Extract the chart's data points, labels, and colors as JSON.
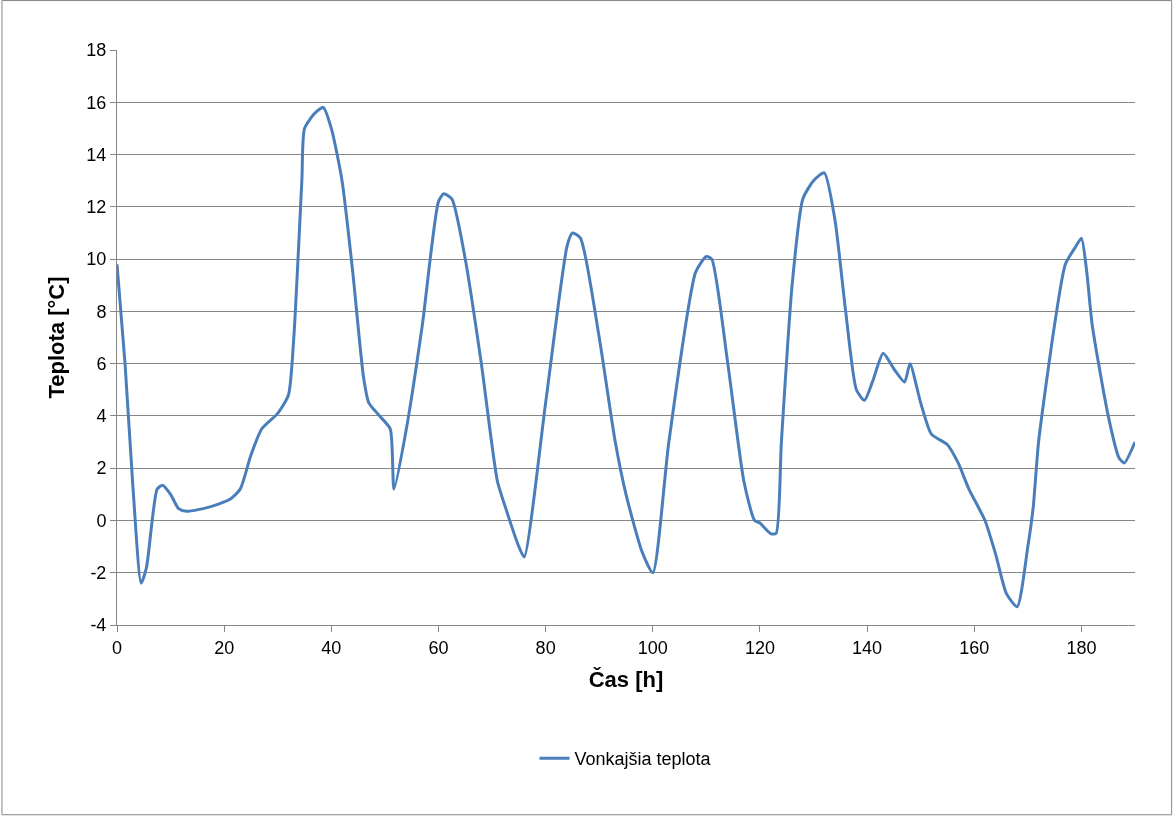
{
  "chart_data": {
    "type": "line",
    "xlabel": "Čas [h]",
    "ylabel": "Teplota [°C]",
    "x": [
      0,
      1.5,
      3,
      4.5,
      5.5,
      7.5,
      8.5,
      10,
      11.5,
      13,
      17,
      21,
      23,
      25,
      27,
      30,
      32,
      33,
      34.5,
      35,
      37,
      38.5,
      40,
      42,
      44,
      46,
      47,
      49,
      51,
      51.7,
      54,
      57,
      60,
      61,
      62.5,
      65,
      68,
      71,
      72.5,
      75,
      76,
      80,
      84,
      85,
      86.5,
      90,
      93,
      95,
      98,
      100,
      103,
      108,
      110,
      111,
      114,
      117,
      119,
      120,
      122,
      123,
      124,
      126,
      128,
      130,
      132,
      134,
      136,
      138,
      139.5,
      141,
      143,
      145,
      147,
      148,
      150,
      152,
      155,
      157,
      159,
      162,
      164,
      166,
      168,
      170,
      171,
      172,
      175,
      177,
      179,
      180,
      181,
      182,
      185,
      187,
      188,
      190
    ],
    "series": [
      {
        "name": "Vonkajšia teplota",
        "color": "#4a7ebb",
        "values": [
          9.8,
          6,
          1.2,
          -2.4,
          -1.8,
          1.2,
          1.35,
          1,
          0.45,
          0.35,
          0.5,
          0.8,
          1.2,
          2.5,
          3.5,
          4.1,
          4.8,
          7,
          13,
          15,
          15.6,
          15.8,
          15,
          13,
          9.5,
          5.5,
          4.5,
          4,
          3.5,
          1.2,
          3.5,
          7.5,
          12.2,
          12.5,
          12.3,
          10,
          6,
          1.5,
          0.5,
          -1,
          -1.4,
          4.5,
          10.5,
          11,
          10.8,
          7,
          3,
          1,
          -1.2,
          -2,
          3,
          9.5,
          10.1,
          10,
          6,
          1.5,
          0,
          -0.1,
          -0.5,
          -0.5,
          3,
          9,
          12.3,
          13,
          13.3,
          11.5,
          8,
          5,
          4.6,
          5.3,
          6.4,
          5.8,
          5.3,
          6,
          4.5,
          3.3,
          2.9,
          2.2,
          1.2,
          0,
          -1.3,
          -2.8,
          -3.3,
          -1,
          0.5,
          3,
          7.5,
          9.8,
          10.5,
          10.8,
          9.5,
          7.5,
          4,
          2.4,
          2.2,
          3
        ]
      }
    ],
    "xlim": [
      0,
      190
    ],
    "xticks": [
      0,
      20,
      40,
      60,
      80,
      100,
      120,
      140,
      160,
      180
    ],
    "ylim": [
      -4,
      18
    ],
    "yticks": [
      -4,
      -2,
      0,
      2,
      4,
      6,
      8,
      10,
      12,
      14,
      16,
      18
    ],
    "grid": "y",
    "legend": "bottom",
    "marker": "none",
    "line_style": "solid"
  }
}
